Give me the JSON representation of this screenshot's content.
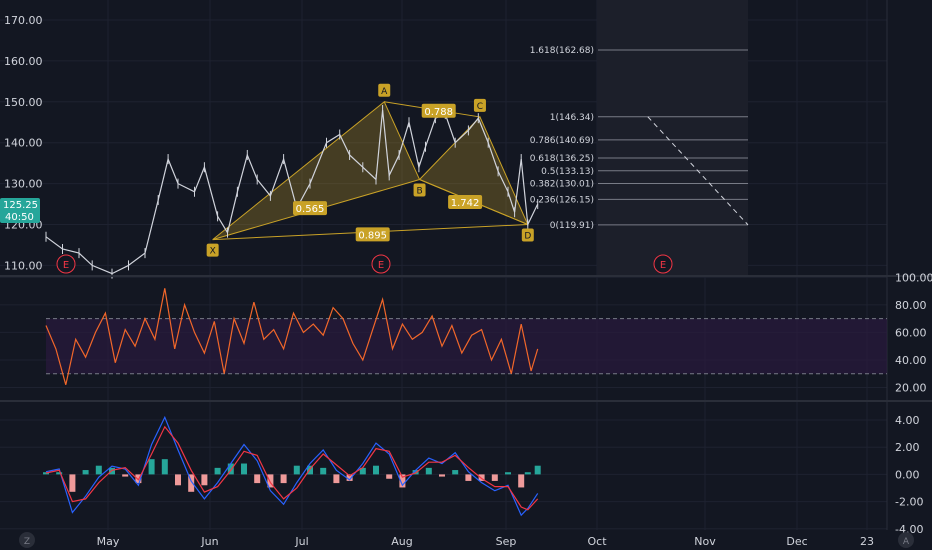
{
  "colors": {
    "background": "#131722",
    "grid": "#1e2230",
    "axis_text": "#d1d4dc",
    "candle": "#d1d4dc",
    "harmonic": "#c9a227",
    "harmonic_fill": "#c9a227",
    "fib_line": "#787b86",
    "rsi_line": "#f2672a",
    "rsi_band": "#2a1a3d",
    "macd_line": "#2962ff",
    "signal_line": "#f23645",
    "hist_up": "#26a69a",
    "hist_down": "#ef9a9a",
    "price_badge": "#26a69a",
    "earnings": "#f23645"
  },
  "price_badge": {
    "value": "125.25",
    "countdown": "40:50"
  },
  "earnings_markers": [
    "E",
    "E",
    "E"
  ],
  "bottom_left_icon": "Z",
  "bottom_right_icon": "A",
  "fib_levels": [
    {
      "label": "1.618(162.68)",
      "value": 162.68
    },
    {
      "label": "1(146.34)",
      "value": 146.34
    },
    {
      "label": "0.786(140.69)",
      "value": 140.69
    },
    {
      "label": "0.618(136.25)",
      "value": 136.25
    },
    {
      "label": "0.5(133.13)",
      "value": 133.13
    },
    {
      "label": "0.382(130.01)",
      "value": 130.01
    },
    {
      "label": "0.236(126.15)",
      "value": 126.15
    },
    {
      "label": "0(119.91)",
      "value": 119.91
    }
  ],
  "chart_data": [
    {
      "type": "candlestick",
      "title": "",
      "x_labels": [
        "May",
        "Jun",
        "Jul",
        "Aug",
        "Sep",
        "Oct",
        "Nov",
        "Dec",
        "23"
      ],
      "y_ticks": [
        "170.00",
        "160.00",
        "150.00",
        "140.00",
        "130.00",
        "120.00",
        "110.00"
      ],
      "ylim": [
        107,
        174
      ],
      "price_series": [
        {
          "t": 0,
          "v": 117
        },
        {
          "t": 5,
          "v": 114
        },
        {
          "t": 10,
          "v": 113
        },
        {
          "t": 14,
          "v": 110
        },
        {
          "t": 20,
          "v": 108
        },
        {
          "t": 25,
          "v": 110
        },
        {
          "t": 30,
          "v": 113
        },
        {
          "t": 34,
          "v": 126
        },
        {
          "t": 37,
          "v": 136
        },
        {
          "t": 40,
          "v": 130
        },
        {
          "t": 45,
          "v": 128
        },
        {
          "t": 48,
          "v": 134
        },
        {
          "t": 52,
          "v": 122
        },
        {
          "t": 55,
          "v": 118
        },
        {
          "t": 58,
          "v": 128
        },
        {
          "t": 61,
          "v": 137
        },
        {
          "t": 64,
          "v": 131
        },
        {
          "t": 68,
          "v": 127
        },
        {
          "t": 72,
          "v": 136
        },
        {
          "t": 76,
          "v": 124
        },
        {
          "t": 80,
          "v": 130
        },
        {
          "t": 85,
          "v": 140
        },
        {
          "t": 89,
          "v": 142
        },
        {
          "t": 92,
          "v": 137
        },
        {
          "t": 96,
          "v": 134
        },
        {
          "t": 100,
          "v": 131
        },
        {
          "t": 102,
          "v": 148
        },
        {
          "t": 104,
          "v": 132
        },
        {
          "t": 107,
          "v": 137
        },
        {
          "t": 110,
          "v": 145
        },
        {
          "t": 113,
          "v": 134
        },
        {
          "t": 115,
          "v": 139
        },
        {
          "t": 118,
          "v": 146
        },
        {
          "t": 121,
          "v": 147
        },
        {
          "t": 124,
          "v": 140
        },
        {
          "t": 128,
          "v": 143
        },
        {
          "t": 131,
          "v": 146
        },
        {
          "t": 134,
          "v": 140
        },
        {
          "t": 137,
          "v": 133
        },
        {
          "t": 140,
          "v": 128
        },
        {
          "t": 142,
          "v": 123
        },
        {
          "t": 144,
          "v": 136
        },
        {
          "t": 146,
          "v": 120
        },
        {
          "t": 149,
          "v": 125
        }
      ],
      "harmonic_points": [
        {
          "label": "X",
          "t": 50.5,
          "v": 116.3
        },
        {
          "label": "A",
          "t": 102.5,
          "v": 150.0
        },
        {
          "label": "B",
          "t": 113.2,
          "v": 131.0
        },
        {
          "label": "C",
          "t": 131.5,
          "v": 146.3
        },
        {
          "label": "D",
          "t": 146.0,
          "v": 120.0
        }
      ],
      "harmonic_ratios": [
        {
          "label": "0.565",
          "t": 80.0,
          "v": 124.0
        },
        {
          "label": "0.788",
          "t": 119.0,
          "v": 147.8
        },
        {
          "label": "1.742",
          "t": 127.0,
          "v": 125.5
        },
        {
          "label": "0.895",
          "t": 99.0,
          "v": 117.6
        }
      ]
    },
    {
      "type": "line",
      "title": "",
      "y_ticks": [
        "100.00",
        "80.00",
        "60.00",
        "40.00",
        "20.00"
      ],
      "ylim": [
        10,
        102
      ],
      "band": [
        30,
        70
      ],
      "series": [
        {
          "values_t": [
            0,
            3,
            6,
            9,
            12,
            15,
            18,
            21,
            24,
            27,
            30,
            33,
            36,
            39,
            42,
            45,
            48,
            51,
            54,
            57,
            60,
            63,
            66,
            69,
            72,
            75,
            78,
            81,
            84,
            87,
            90,
            93,
            96,
            99,
            102,
            105,
            108,
            111,
            114,
            117,
            120,
            123,
            126,
            129,
            132,
            135,
            138,
            141,
            144,
            147,
            149
          ],
          "values": [
            65,
            48,
            22,
            55,
            42,
            60,
            74,
            38,
            62,
            50,
            70,
            55,
            92,
            48,
            80,
            60,
            45,
            68,
            30,
            70,
            52,
            82,
            55,
            62,
            48,
            74,
            60,
            66,
            58,
            78,
            70,
            52,
            40,
            62,
            84,
            48,
            66,
            55,
            60,
            72,
            50,
            65,
            45,
            58,
            62,
            40,
            55,
            30,
            66,
            32,
            48
          ]
        }
      ]
    },
    {
      "type": "line",
      "title": "",
      "y_ticks": [
        "4.00",
        "2.00",
        "0.00",
        "-2.00",
        "-4.00"
      ],
      "ylim": [
        -4.4,
        5.0
      ],
      "series": [
        {
          "values_t": [
            0,
            4,
            8,
            12,
            16,
            20,
            24,
            28,
            32,
            36,
            40,
            44,
            48,
            52,
            56,
            60,
            64,
            68,
            72,
            76,
            80,
            84,
            88,
            92,
            96,
            100,
            104,
            108,
            112,
            116,
            120,
            124,
            128,
            132,
            136,
            140,
            144,
            146,
            149
          ],
          "values": [
            0.2,
            0.4,
            -2.8,
            -1.6,
            -0.2,
            0.6,
            0.4,
            -0.8,
            2.2,
            4.2,
            1.8,
            -0.5,
            -1.8,
            -0.6,
            0.8,
            2.2,
            1.0,
            -1.2,
            -2.2,
            -0.6,
            0.8,
            1.8,
            0.3,
            -0.4,
            0.8,
            2.3,
            1.5,
            -0.8,
            0.3,
            1.2,
            0.8,
            1.6,
            0.2,
            -0.6,
            -1.2,
            -0.8,
            -3.0,
            -2.5,
            -1.4
          ]
        },
        {
          "values_t": [
            0,
            4,
            8,
            12,
            16,
            20,
            24,
            28,
            32,
            36,
            40,
            44,
            48,
            52,
            56,
            60,
            64,
            68,
            72,
            76,
            80,
            84,
            88,
            92,
            96,
            100,
            104,
            108,
            112,
            116,
            120,
            124,
            128,
            132,
            136,
            140,
            144,
            146,
            149
          ],
          "values": [
            0.1,
            0.3,
            -2.0,
            -1.8,
            -0.6,
            0.3,
            0.5,
            -0.4,
            1.5,
            3.5,
            2.3,
            0.3,
            -1.3,
            -0.9,
            0.3,
            1.7,
            1.4,
            -0.6,
            -1.8,
            -1.0,
            0.4,
            1.5,
            0.7,
            -0.1,
            0.5,
            1.9,
            1.7,
            -0.2,
            0.1,
            0.9,
            0.9,
            1.4,
            0.5,
            -0.3,
            -0.9,
            -0.9,
            -2.4,
            -2.6,
            -1.8
          ]
        }
      ]
    }
  ]
}
